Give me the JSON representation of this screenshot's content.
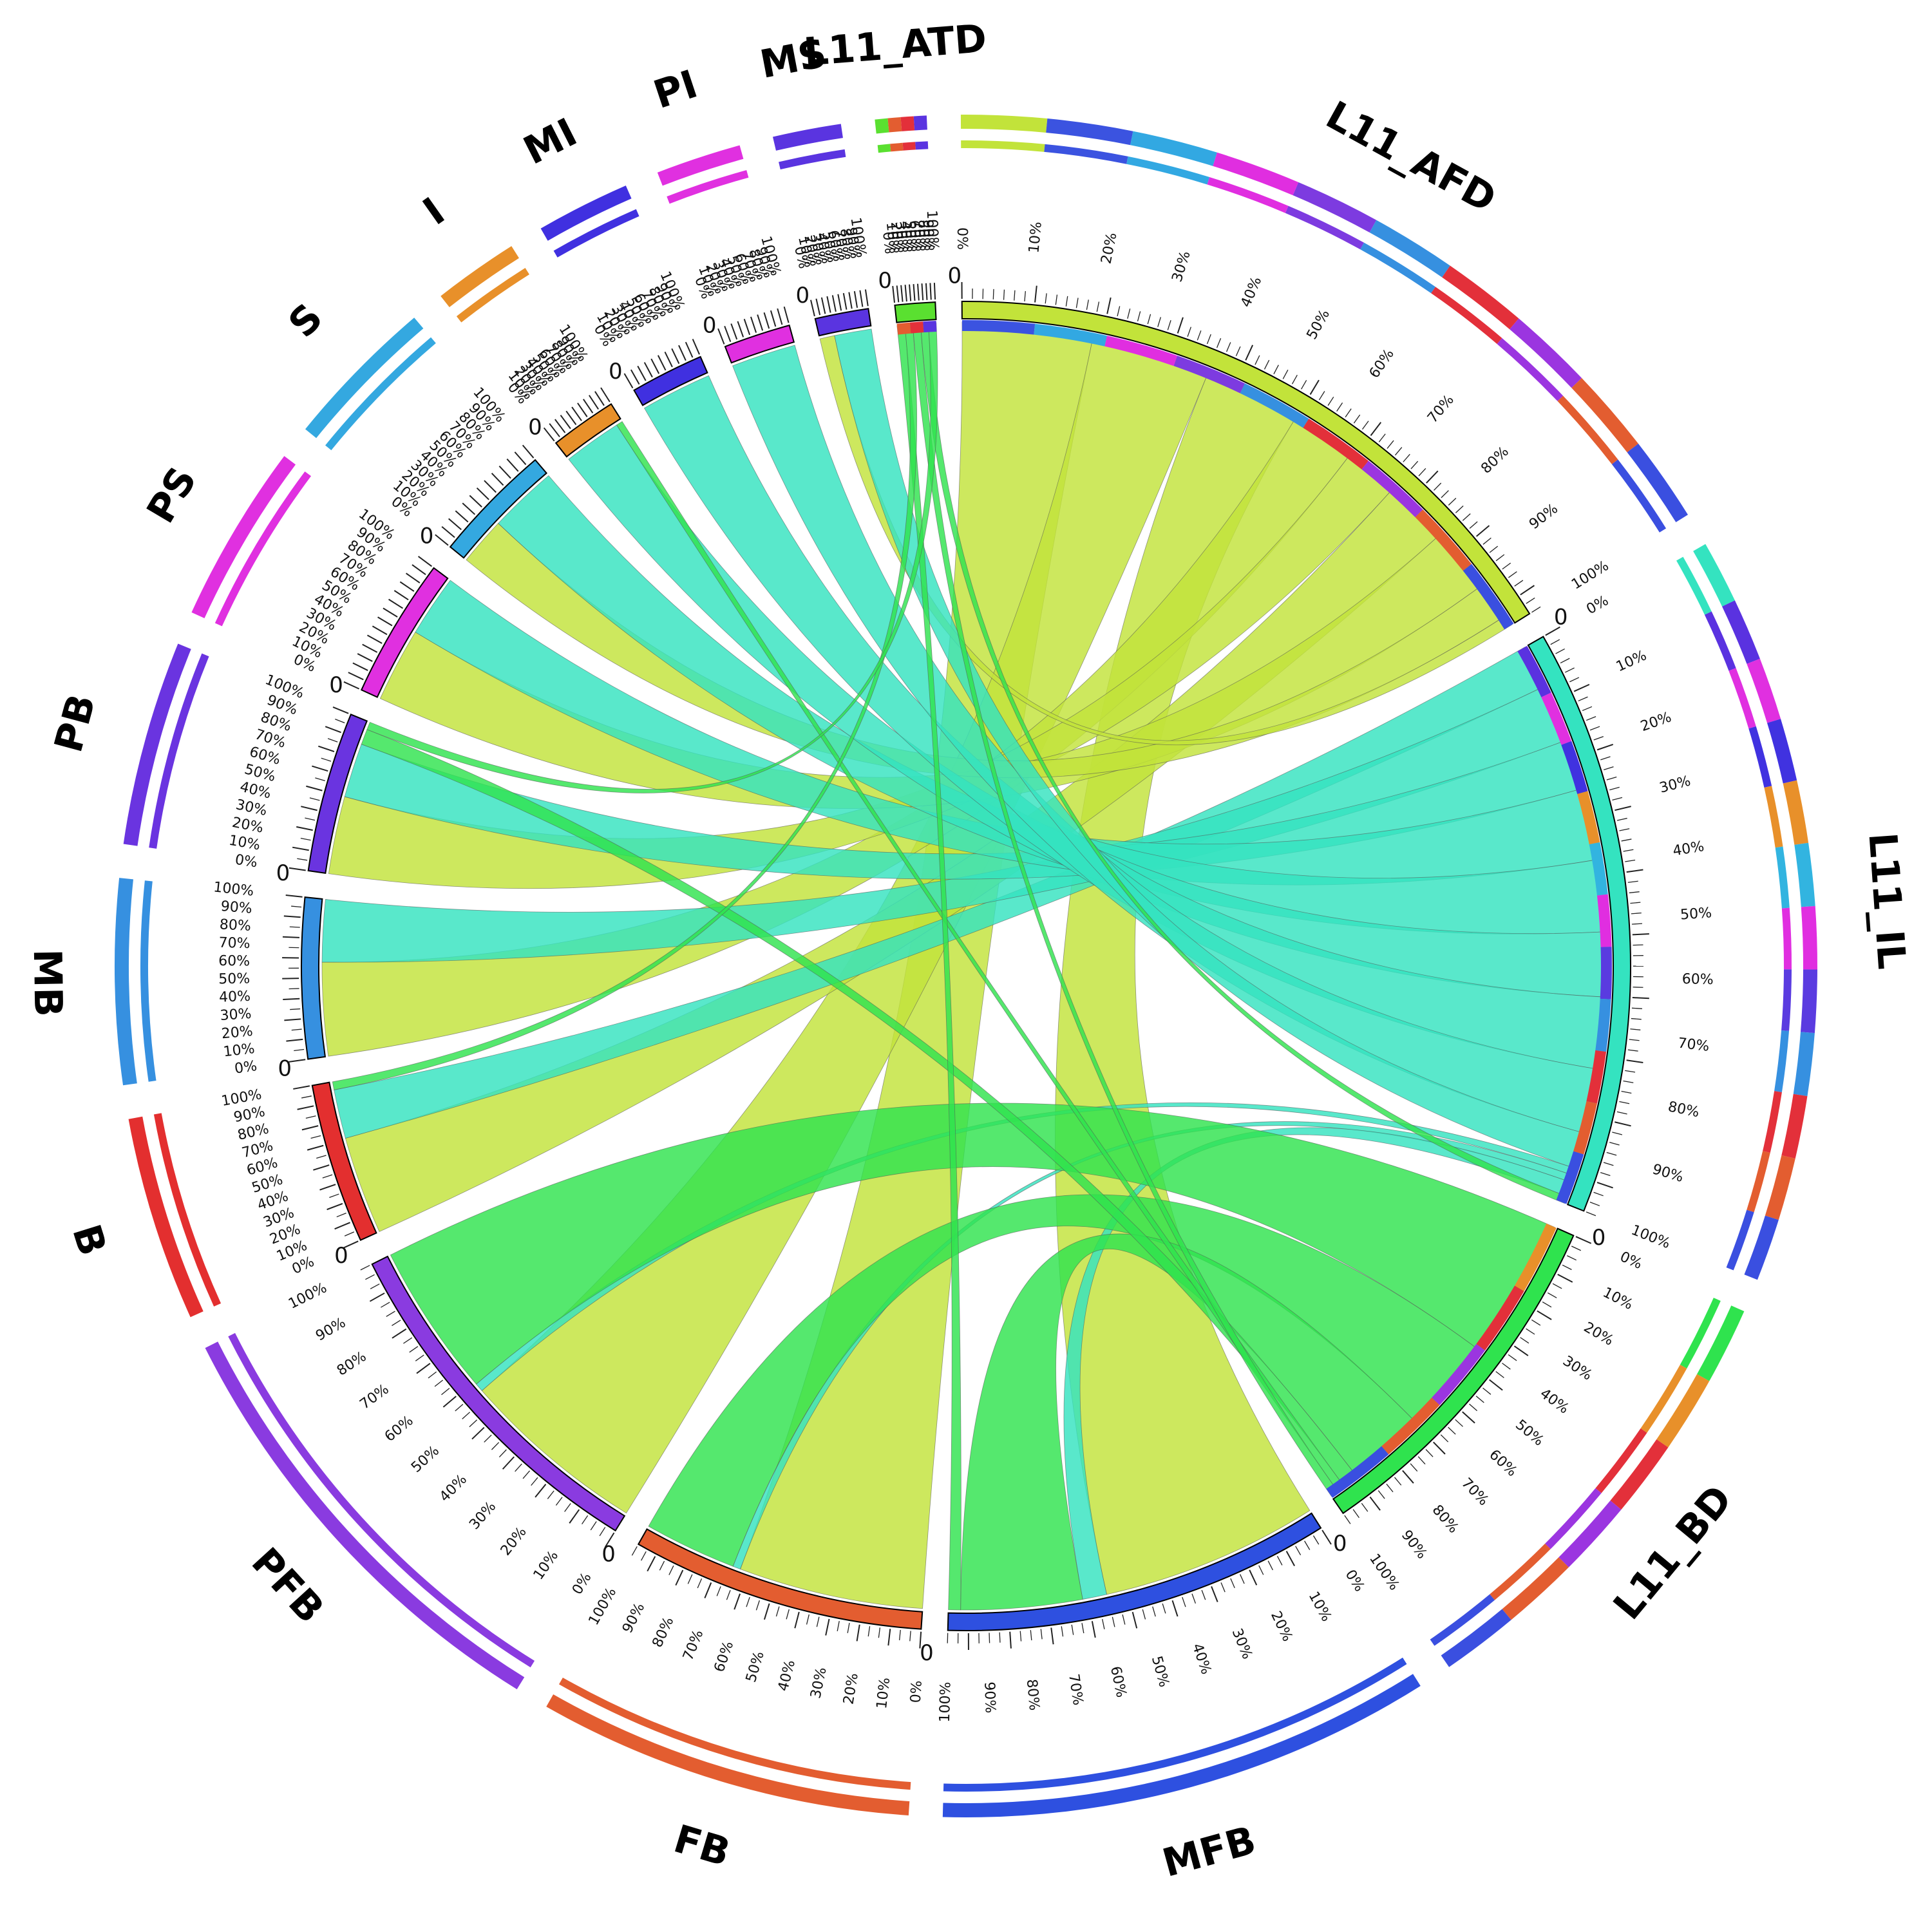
{
  "chart_data": {
    "type": "chord",
    "title": "",
    "tick_format": "%",
    "segments": [
      {
        "id": "L11_AFD",
        "label": "L11_AFD",
        "color": "#c2e33a",
        "size": 100,
        "sub": [
          "#3b53e0",
          "#32a8e2",
          "#e02ee0",
          "#7d3be0",
          "#3690e0",
          "#e3303a",
          "#9b35e0",
          "#e35d30",
          "#3a4fe0"
        ]
      },
      {
        "id": "L11_IL",
        "label": "L11_IL",
        "color": "#34e3c0",
        "size": 88,
        "sub": [
          "#5a32e0",
          "#e030e0",
          "#4032e0",
          "#e8902a",
          "#32b4e0",
          "#e02ee0",
          "#5a3be0",
          "#3690e0",
          "#e3303a",
          "#e35d30",
          "#3a4fe0"
        ]
      },
      {
        "id": "L11_BD",
        "label": "L11_BD",
        "color": "#2fe34e",
        "size": 54,
        "sub": [
          "#e8902a",
          "#e3303a",
          "#9b35e0",
          "#e35d30",
          "#3a4fe0"
        ]
      },
      {
        "id": "MFB",
        "label": "MFB",
        "color": "#2e50e0",
        "size": 58,
        "sub": []
      },
      {
        "id": "FB",
        "label": "FB",
        "color": "#e35d30",
        "size": 44,
        "sub": []
      },
      {
        "id": "PFB",
        "label": "PFB",
        "color": "#8a3be0",
        "size": 54,
        "sub": []
      },
      {
        "id": "B",
        "label": "B",
        "color": "#e32f2f",
        "size": 24,
        "sub": []
      },
      {
        "id": "MB",
        "label": "MB",
        "color": "#3690e0",
        "size": 24,
        "sub": []
      },
      {
        "id": "PB",
        "label": "PB",
        "color": "#6a34e0",
        "size": 24,
        "sub": []
      },
      {
        "id": "PS",
        "label": "PS",
        "color": "#e030e0",
        "size": 21,
        "sub": []
      },
      {
        "id": "S",
        "label": "S",
        "color": "#34a8e0",
        "size": 18,
        "sub": []
      },
      {
        "id": "I",
        "label": "I",
        "color": "#e8902a",
        "size": 10,
        "sub": []
      },
      {
        "id": "MI",
        "label": "MI",
        "color": "#4030e0",
        "size": 11,
        "sub": []
      },
      {
        "id": "PI",
        "label": "PI",
        "color": "#e030e0",
        "size": 10,
        "sub": []
      },
      {
        "id": "MS",
        "label": "MS",
        "color": "#5a34e0",
        "size": 8,
        "sub": []
      },
      {
        "id": "L11_ATD",
        "label": "L11_ATD",
        "color": "#5ae030",
        "size": 6,
        "sub": [
          "#e35d30",
          "#e3303a",
          "#5a34e0"
        ]
      }
    ],
    "links": [
      {
        "source": "L11_AFD",
        "target": "FB",
        "value": 24,
        "color": "#c2e33a"
      },
      {
        "source": "L11_AFD",
        "target": "PFB",
        "value": 22,
        "color": "#c2e33a"
      },
      {
        "source": "L11_AFD",
        "target": "MFB",
        "value": 18,
        "color": "#c2e33a"
      },
      {
        "source": "L11_AFD",
        "target": "MB",
        "value": 12,
        "color": "#c2e33a"
      },
      {
        "source": "L11_AFD",
        "target": "PB",
        "value": 10,
        "color": "#c2e33a"
      },
      {
        "source": "L11_AFD",
        "target": "B",
        "value": 12,
        "color": "#c2e33a"
      },
      {
        "source": "L11_AFD",
        "target": "PS",
        "value": 12,
        "color": "#c2e33a"
      },
      {
        "source": "L11_AFD",
        "target": "S",
        "value": 7,
        "color": "#c2e33a"
      },
      {
        "source": "L11_AFD",
        "target": "MS",
        "value": 2,
        "color": "#c2e33a"
      },
      {
        "source": "L11_IL",
        "target": "B",
        "value": 6,
        "color": "#34e3c0"
      },
      {
        "source": "L11_IL",
        "target": "MB",
        "value": 8,
        "color": "#34e3c0"
      },
      {
        "source": "L11_IL",
        "target": "PB",
        "value": 7,
        "color": "#34e3c0"
      },
      {
        "source": "L11_IL",
        "target": "PS",
        "value": 10,
        "color": "#34e3c0"
      },
      {
        "source": "L11_IL",
        "target": "S",
        "value": 10,
        "color": "#34e3c0"
      },
      {
        "source": "L11_IL",
        "target": "I",
        "value": 9,
        "color": "#34e3c0"
      },
      {
        "source": "L11_IL",
        "target": "MI",
        "value": 10,
        "color": "#34e3c0"
      },
      {
        "source": "L11_IL",
        "target": "PI",
        "value": 9,
        "color": "#34e3c0"
      },
      {
        "source": "L11_IL",
        "target": "MS",
        "value": 5,
        "color": "#34e3c0"
      },
      {
        "source": "L11_IL",
        "target": "PFB",
        "value": 1,
        "color": "#34e3c0"
      },
      {
        "source": "L11_IL",
        "target": "FB",
        "value": 1,
        "color": "#34e3c0"
      },
      {
        "source": "L11_IL",
        "target": "MFB",
        "value": 2,
        "color": "#34e3c0"
      },
      {
        "source": "L11_BD",
        "target": "PFB",
        "value": 18,
        "color": "#2fe34e"
      },
      {
        "source": "L11_BD",
        "target": "FB",
        "value": 12,
        "color": "#2fe34e"
      },
      {
        "source": "L11_BD",
        "target": "MFB",
        "value": 10,
        "color": "#2fe34e"
      },
      {
        "source": "L11_BD",
        "target": "PB",
        "value": 2,
        "color": "#2fe34e"
      },
      {
        "source": "L11_BD",
        "target": "I",
        "value": 1,
        "color": "#2fe34e"
      },
      {
        "source": "L11_ATD",
        "target": "MFB",
        "value": 1,
        "color": "#2fe34e"
      },
      {
        "source": "L11_ATD",
        "target": "B",
        "value": 1,
        "color": "#2fe34e"
      },
      {
        "source": "L11_ATD",
        "target": "L11_BD",
        "value": 1,
        "color": "#2fe34e"
      },
      {
        "source": "L11_ATD",
        "target": "L11_IL",
        "value": 1,
        "color": "#2fe34e"
      },
      {
        "source": "L11_ATD",
        "target": "PB",
        "value": 1,
        "color": "#2fe34e"
      }
    ]
  }
}
